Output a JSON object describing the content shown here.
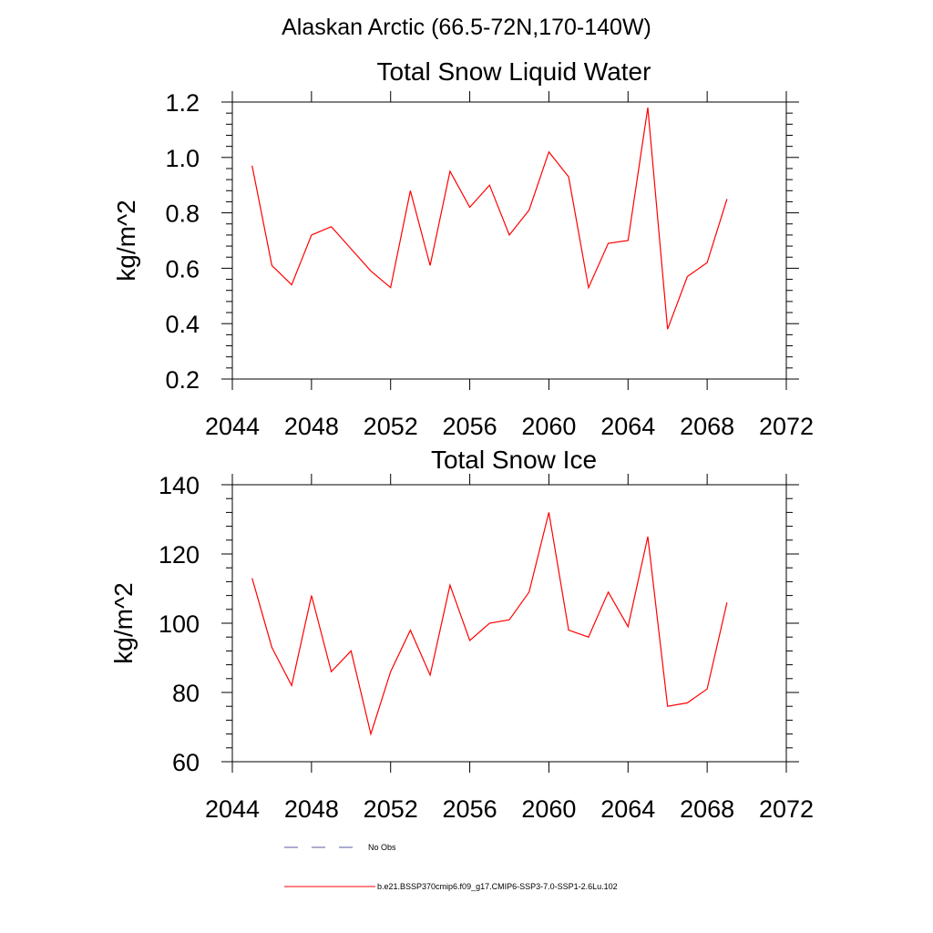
{
  "figure": {
    "suptitle": "Alaskan Arctic (66.5-72N,170-140W)"
  },
  "colors": {
    "series": "#ff0000",
    "obs": "#5a5aa0",
    "axis": "#000000"
  },
  "legend": {
    "placement": "bottom-center",
    "entries": [
      {
        "label": "No Obs",
        "style": "dashed",
        "color": "#5a5aa0"
      },
      {
        "label": "b.e21.BSSP370cmip6.f09_g17.CMIP6-SSP3-7.0-SSP1-2.6Lu.102",
        "style": "solid",
        "color": "#ff0000"
      }
    ]
  },
  "chart_data": [
    {
      "type": "line",
      "title": "Total Snow Liquid Water",
      "xlabel": "",
      "ylabel": "kg/m^2",
      "xlim": [
        2044,
        2072
      ],
      "ylim": [
        0.2,
        1.2
      ],
      "xticks": [
        2044,
        2048,
        2052,
        2056,
        2060,
        2064,
        2068,
        2072
      ],
      "yticks": [
        0.2,
        0.4,
        0.6,
        0.8,
        1.0,
        1.2
      ],
      "ytick_labels": [
        "0.2",
        "0.4",
        "0.6",
        "0.8",
        "1.0",
        "1.2"
      ],
      "grid": false,
      "series": [
        {
          "name": "b.e21.BSSP370cmip6.f09_g17.CMIP6-SSP3-7.0-SSP1-2.6Lu.102",
          "color": "#ff0000",
          "x": [
            2045,
            2046,
            2047,
            2048,
            2049,
            2050,
            2051,
            2052,
            2053,
            2054,
            2055,
            2056,
            2057,
            2058,
            2059,
            2060,
            2061,
            2062,
            2063,
            2064,
            2065,
            2066,
            2067,
            2068,
            2069
          ],
          "y": [
            0.97,
            0.61,
            0.54,
            0.72,
            0.75,
            0.67,
            0.59,
            0.53,
            0.88,
            0.61,
            0.95,
            0.82,
            0.9,
            0.72,
            0.81,
            1.02,
            0.93,
            0.53,
            0.69,
            0.7,
            1.18,
            0.38,
            0.57,
            0.62,
            0.85
          ]
        }
      ]
    },
    {
      "type": "line",
      "title": "Total Snow Ice",
      "xlabel": "",
      "ylabel": "kg/m^2",
      "xlim": [
        2044,
        2072
      ],
      "ylim": [
        60,
        140
      ],
      "xticks": [
        2044,
        2048,
        2052,
        2056,
        2060,
        2064,
        2068,
        2072
      ],
      "yticks": [
        60,
        80,
        100,
        120,
        140
      ],
      "ytick_labels": [
        "60",
        "80",
        "100",
        "120",
        "140"
      ],
      "grid": false,
      "series": [
        {
          "name": "b.e21.BSSP370cmip6.f09_g17.CMIP6-SSP3-7.0-SSP1-2.6Lu.102",
          "color": "#ff0000",
          "x": [
            2045,
            2046,
            2047,
            2048,
            2049,
            2050,
            2051,
            2052,
            2053,
            2054,
            2055,
            2056,
            2057,
            2058,
            2059,
            2060,
            2061,
            2062,
            2063,
            2064,
            2065,
            2066,
            2067,
            2068,
            2069
          ],
          "y": [
            113,
            93,
            82,
            108,
            86,
            92,
            68,
            86,
            98,
            85,
            111,
            95,
            100,
            101,
            109,
            132,
            98,
            96,
            109,
            99,
            125,
            76,
            77,
            81,
            106
          ]
        }
      ]
    }
  ]
}
